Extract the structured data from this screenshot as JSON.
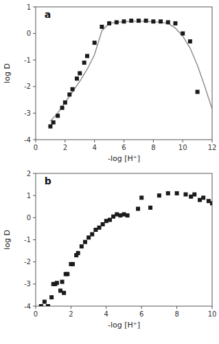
{
  "chart_data": [
    {
      "type": "scatter",
      "annotations": [
        "a"
      ],
      "xlabel": "-log [H⁺]",
      "ylabel": "log D",
      "xlim": [
        0,
        12
      ],
      "ylim": [
        -4,
        1
      ],
      "xticks": [
        0,
        2,
        4,
        6,
        8,
        10,
        12
      ],
      "yticks": [
        -4,
        -3,
        -2,
        -1,
        0,
        1
      ],
      "series": [
        {
          "type": "line",
          "color": "#888888",
          "x": [
            1.0,
            1.5,
            2.0,
            2.5,
            3.0,
            3.5,
            4.0,
            4.5,
            5.0,
            5.5,
            6.0,
            6.5,
            7.0,
            7.5,
            8.0,
            8.5,
            9.0,
            9.5,
            10.0,
            10.5,
            11.0,
            11.5,
            12.0
          ],
          "values": [
            -3.3,
            -3.0,
            -2.6,
            -2.2,
            -1.8,
            -1.35,
            -0.8,
            0.1,
            0.38,
            0.42,
            0.44,
            0.46,
            0.46,
            0.46,
            0.44,
            0.42,
            0.38,
            0.2,
            -0.1,
            -0.55,
            -1.2,
            -2.0,
            -2.85
          ]
        },
        {
          "type": "scatter",
          "color": "#1a1a1a",
          "marker": "square",
          "x": [
            1.0,
            1.2,
            1.5,
            1.8,
            2.0,
            2.3,
            2.5,
            2.8,
            3.0,
            3.3,
            3.5,
            4.0,
            4.5,
            5.0,
            5.5,
            6.0,
            6.5,
            7.0,
            7.5,
            8.0,
            8.5,
            9.0,
            9.5,
            10.0,
            10.5,
            11.0
          ],
          "values": [
            -3.5,
            -3.35,
            -3.1,
            -2.8,
            -2.6,
            -2.3,
            -2.1,
            -1.7,
            -1.5,
            -1.1,
            -0.85,
            -0.35,
            0.25,
            0.38,
            0.42,
            0.45,
            0.48,
            0.48,
            0.48,
            0.45,
            0.45,
            0.42,
            0.38,
            0.0,
            -0.3,
            -2.2
          ]
        }
      ]
    },
    {
      "type": "scatter",
      "annotations": [
        "b"
      ],
      "xlabel": "-log [H⁺]",
      "ylabel": "log D",
      "xlim": [
        0,
        10
      ],
      "ylim": [
        -4,
        2
      ],
      "xticks": [
        0,
        2,
        4,
        6,
        8,
        10
      ],
      "yticks": [
        -4,
        -3,
        -2,
        -1,
        0,
        1,
        2
      ],
      "series": [
        {
          "type": "scatter",
          "color": "#1a1a1a",
          "marker": "square",
          "x": [
            0.3,
            0.5,
            0.7,
            0.9,
            1.0,
            1.1,
            1.2,
            1.4,
            1.5,
            1.6,
            1.7,
            1.8,
            2.0,
            2.1,
            2.3,
            2.4,
            2.6,
            2.8,
            3.0,
            3.2,
            3.4,
            3.6,
            3.8,
            4.0,
            4.2,
            4.4,
            4.6,
            4.8,
            5.0,
            5.2,
            5.8,
            6.0,
            6.5,
            7.0,
            7.5,
            8.0,
            8.5,
            8.8,
            9.0,
            9.3,
            9.5,
            9.8,
            10.0
          ],
          "values": [
            -4.0,
            -3.8,
            -4.0,
            -3.6,
            -3.0,
            -3.0,
            -2.95,
            -3.3,
            -2.9,
            -3.4,
            -2.55,
            -2.55,
            -2.1,
            -2.1,
            -1.7,
            -1.6,
            -1.3,
            -1.1,
            -0.9,
            -0.75,
            -0.55,
            -0.45,
            -0.3,
            -0.15,
            -0.1,
            0.05,
            0.15,
            0.1,
            0.15,
            0.1,
            0.4,
            0.9,
            0.45,
            1.0,
            1.1,
            1.1,
            1.05,
            0.95,
            1.05,
            0.8,
            0.9,
            0.75,
            0.65
          ]
        }
      ]
    }
  ]
}
